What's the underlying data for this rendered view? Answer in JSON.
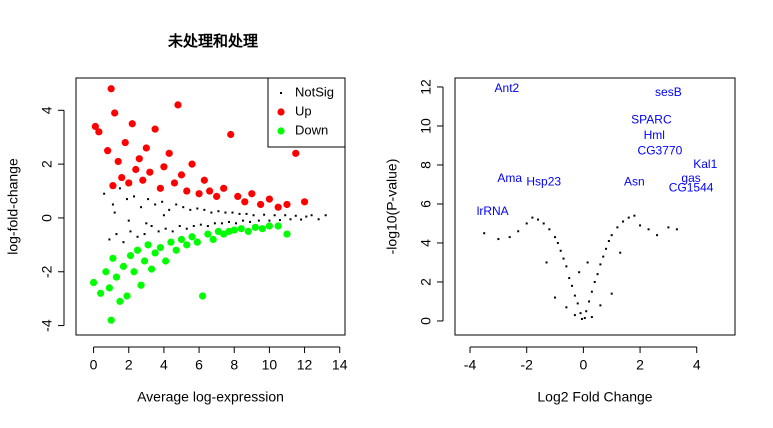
{
  "chart_data": [
    {
      "type": "scatter",
      "title": "未处理和处理",
      "xlabel": "Average log-expression",
      "ylabel": "log-fold-change",
      "xlim": [
        -1.0,
        14.3
      ],
      "ylim": [
        -4.35,
        5.2
      ],
      "xticks": [
        0,
        2,
        4,
        6,
        8,
        10,
        12,
        14
      ],
      "yticks": [
        -4,
        -2,
        0,
        2,
        4
      ],
      "legend": "topright",
      "series": [
        {
          "name": "NotSig",
          "color": "#000000",
          "marker": "dot",
          "x": [
            0.6,
            0.9,
            1.1,
            1.3,
            1.5,
            1.7,
            1.9,
            2.1,
            2.3,
            2.5,
            2.7,
            2.9,
            3.1,
            3.3,
            3.5,
            3.7,
            3.9,
            4.1,
            4.3,
            4.5,
            4.7,
            4.9,
            5.1,
            5.3,
            5.5,
            5.7,
            5.9,
            6.1,
            6.3,
            6.5,
            6.7,
            6.9,
            7.1,
            7.3,
            7.5,
            7.7,
            7.9,
            8.1,
            8.3,
            8.5,
            8.7,
            8.9,
            9.1,
            9.4,
            9.7,
            10.0,
            10.3,
            10.6,
            10.9,
            11.2,
            11.5,
            11.8,
            12.1,
            12.4,
            12.8,
            13.2,
            1.2,
            2.0,
            3.0,
            4.0
          ],
          "y": [
            0.9,
            -0.8,
            0.5,
            -0.6,
            1.1,
            -0.9,
            0.7,
            -0.5,
            0.8,
            -0.7,
            0.4,
            -0.6,
            0.7,
            -0.3,
            0.5,
            -0.5,
            0.6,
            -0.4,
            0.3,
            -0.5,
            0.5,
            -0.3,
            0.4,
            -0.4,
            0.3,
            -0.3,
            0.35,
            -0.25,
            0.3,
            -0.3,
            0.2,
            -0.2,
            0.25,
            -0.2,
            0.2,
            -0.15,
            0.2,
            -0.2,
            0.15,
            -0.1,
            0.15,
            -0.15,
            0.1,
            -0.1,
            0.12,
            -0.1,
            0.1,
            -0.08,
            0.1,
            -0.05,
            0.08,
            -0.06,
            0.05,
            0.1,
            -0.05,
            0.1,
            0.2,
            -0.1,
            -0.2,
            0.1
          ]
        },
        {
          "name": "Up",
          "color": "#ff0000",
          "marker": "circle",
          "x": [
            0.1,
            0.3,
            0.8,
            1.0,
            1.1,
            1.2,
            1.4,
            1.6,
            1.8,
            2.0,
            2.2,
            2.4,
            2.6,
            2.8,
            3.0,
            3.2,
            3.5,
            3.8,
            4.0,
            4.3,
            4.6,
            4.8,
            5.0,
            5.3,
            5.6,
            6.0,
            6.3,
            6.6,
            7.0,
            7.4,
            7.8,
            8.2,
            8.6,
            9.0,
            9.5,
            10.0,
            10.5,
            11.0,
            11.5,
            12.0
          ],
          "y": [
            3.4,
            3.2,
            2.5,
            4.8,
            1.2,
            3.9,
            2.1,
            1.5,
            2.8,
            1.3,
            3.5,
            1.8,
            2.2,
            1.4,
            2.6,
            1.7,
            3.3,
            1.1,
            1.9,
            2.4,
            1.3,
            4.2,
            1.6,
            1.0,
            2.0,
            0.9,
            1.4,
            1.0,
            0.8,
            1.1,
            3.1,
            0.8,
            0.6,
            0.9,
            0.5,
            0.7,
            0.4,
            0.5,
            2.4,
            0.6
          ]
        },
        {
          "name": "Down",
          "color": "#00ff00",
          "marker": "circle",
          "x": [
            0.0,
            0.4,
            0.7,
            0.9,
            1.0,
            1.1,
            1.3,
            1.5,
            1.7,
            1.9,
            2.1,
            2.3,
            2.5,
            2.7,
            2.9,
            3.1,
            3.3,
            3.5,
            3.8,
            4.1,
            4.4,
            4.7,
            5.0,
            5.3,
            5.6,
            5.9,
            6.2,
            6.5,
            6.8,
            7.1,
            7.4,
            7.7,
            8.0,
            8.4,
            8.8,
            9.2,
            9.6,
            10.0,
            10.5,
            11.0
          ],
          "y": [
            -2.4,
            -2.8,
            -2.0,
            -2.6,
            -3.8,
            -1.5,
            -2.2,
            -3.1,
            -1.8,
            -2.9,
            -1.4,
            -2.0,
            -1.2,
            -2.5,
            -1.6,
            -1.0,
            -1.9,
            -1.3,
            -1.1,
            -1.6,
            -0.9,
            -1.2,
            -0.8,
            -1.0,
            -0.7,
            -0.9,
            -2.9,
            -0.6,
            -0.8,
            -0.5,
            -0.6,
            -0.5,
            -0.45,
            -0.4,
            -0.5,
            -0.35,
            -0.4,
            -0.3,
            -0.3,
            -0.6
          ]
        }
      ]
    },
    {
      "type": "scatter",
      "xlabel": "Log2 Fold Change",
      "ylabel": "-log10(P-value)",
      "xlim": [
        -4.53,
        5.35
      ],
      "ylim": [
        -0.72,
        12.46
      ],
      "xticks": [
        -4,
        -2,
        0,
        2,
        4
      ],
      "yticks": [
        0,
        2,
        4,
        6,
        8,
        10,
        12
      ],
      "series": [
        {
          "color": "#000000",
          "marker": "dot",
          "x": [
            -0.05,
            0.05,
            -0.1,
            0.1,
            -0.2,
            0.2,
            -0.3,
            0.3,
            -0.4,
            0.4,
            -0.5,
            0.5,
            -0.6,
            0.6,
            -0.7,
            0.7,
            -0.8,
            0.8,
            -0.9,
            0.9,
            -1.0,
            1.0,
            -1.2,
            1.2,
            -1.4,
            1.4,
            -1.6,
            1.6,
            -1.8,
            1.8,
            -2.0,
            2.0,
            -2.3,
            2.3,
            -2.6,
            2.6,
            -3.0,
            3.0,
            -3.5,
            3.3,
            -0.3,
            0.3,
            -0.6,
            0.6,
            -1.0,
            1.0,
            -0.15,
            0.15,
            -1.3,
            1.3
          ],
          "y": [
            0.1,
            0.15,
            0.4,
            0.5,
            0.9,
            1.0,
            1.3,
            1.5,
            1.8,
            2.0,
            2.2,
            2.4,
            2.8,
            2.9,
            3.2,
            3.3,
            3.6,
            3.7,
            4.0,
            4.1,
            4.3,
            4.4,
            4.7,
            4.8,
            5.0,
            5.1,
            5.2,
            5.3,
            5.3,
            5.4,
            5.0,
            4.9,
            4.6,
            4.7,
            4.3,
            4.4,
            4.2,
            4.8,
            4.5,
            4.7,
            0.3,
            0.2,
            0.7,
            0.8,
            1.2,
            1.4,
            2.5,
            3.0,
            3.0,
            3.5
          ]
        },
        {
          "color": "#0000ff",
          "marker": "text",
          "labels": [
            "Ant2",
            "sesB",
            "SPARC",
            "Hml",
            "CG3770",
            "Kal1",
            "Ama",
            "Hsp23",
            "Asn",
            "gas",
            "CG1544",
            "lrRNA"
          ],
          "x": [
            -2.7,
            3.0,
            2.4,
            2.5,
            2.7,
            4.3,
            -2.6,
            -1.4,
            1.8,
            3.8,
            3.8,
            -3.2
          ],
          "y": [
            11.9,
            11.7,
            10.3,
            9.5,
            8.7,
            8.0,
            7.3,
            7.1,
            7.1,
            7.3,
            6.8,
            5.6
          ]
        }
      ]
    }
  ]
}
